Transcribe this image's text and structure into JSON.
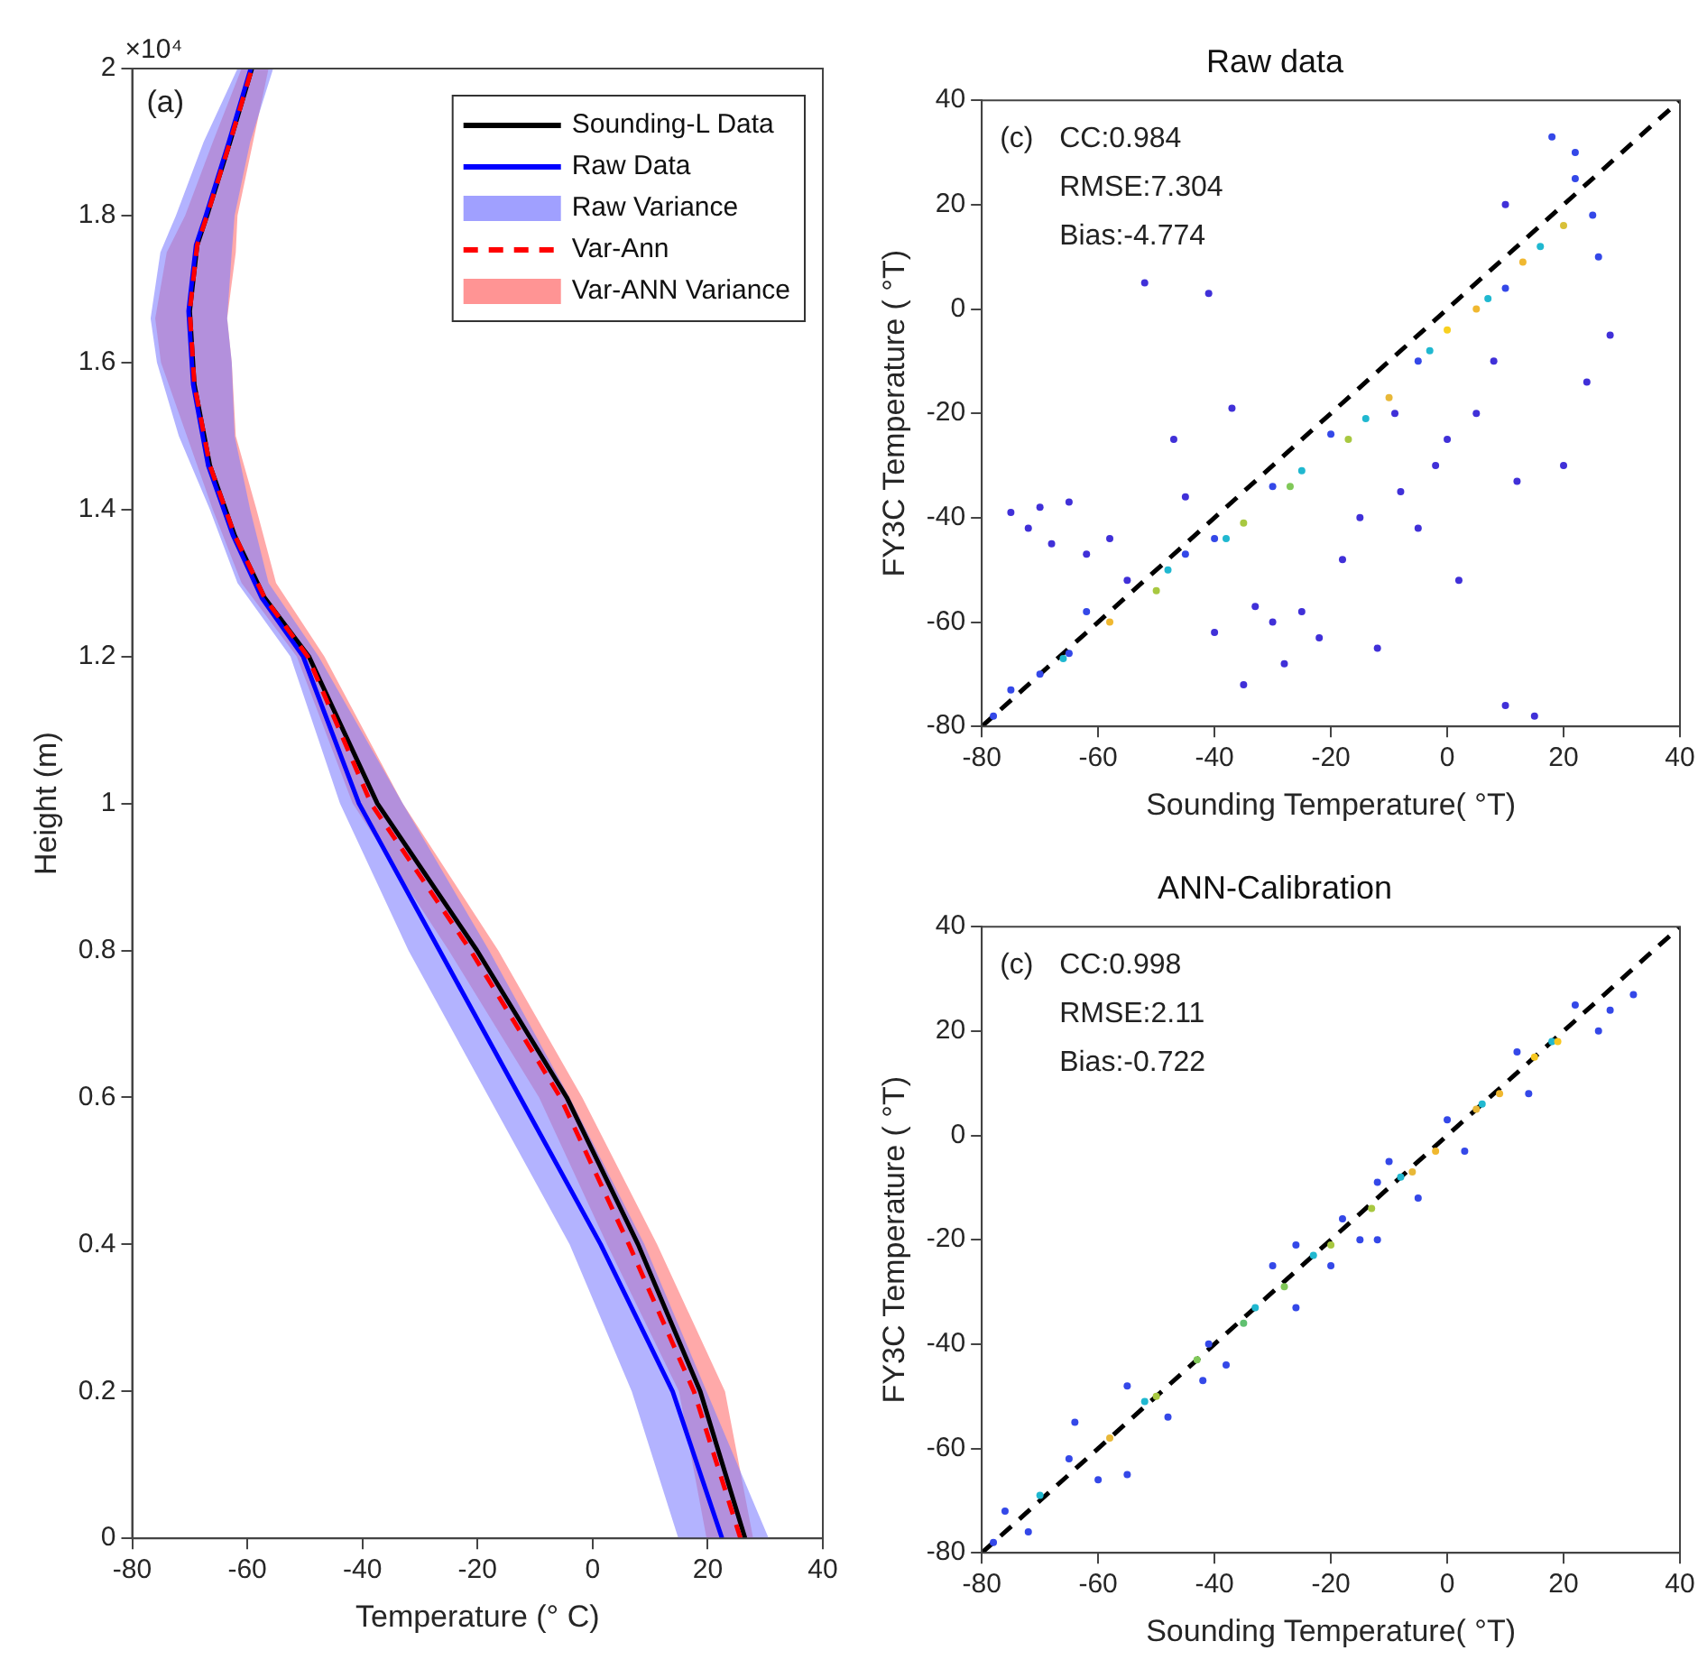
{
  "chart_data": [
    {
      "type": "line",
      "xlabel": "Temperature (° C)",
      "ylabel": "Height (m)",
      "annotations": [
        "(a)",
        "×10⁴"
      ],
      "xlim": [
        -80,
        40
      ],
      "xticks": [
        -80,
        -60,
        -40,
        -20,
        0,
        20,
        40
      ],
      "ylim": [
        0,
        2
      ],
      "yticks": [
        0,
        0.2,
        0.4,
        0.6,
        0.8,
        1,
        1.2,
        1.4,
        1.6,
        1.8,
        2
      ],
      "grid": false,
      "legend": "top right",
      "marker": "none",
      "series": [
        {
          "name": "Sounding-L Data",
          "color": "#000000",
          "line_style": "solid",
          "x": [
            26.5,
            18.7,
            7.9,
            -4.5,
            -20.1,
            -37.4,
            -49.3,
            -57,
            -62.2,
            -66.5,
            -69.2,
            -70,
            -68.7,
            -67,
            -63,
            -59.2
          ],
          "values": [
            0,
            0.2,
            0.4,
            0.6,
            0.8,
            1,
            1.2,
            1.28,
            1.365,
            1.46,
            1.57,
            1.67,
            1.76,
            1.8,
            1.9,
            2
          ]
        },
        {
          "name": "Raw Data",
          "color": "#0000ff",
          "line_style": "solid",
          "x": [
            22.5,
            13.9,
            1.4,
            -12.6,
            -26.6,
            -40.6,
            -50.3,
            -57.5,
            -62.5,
            -66.8,
            -69.4,
            -70.2,
            -68.9,
            -67.2,
            -63.2,
            -59.4
          ],
          "values": [
            0,
            0.2,
            0.4,
            0.6,
            0.8,
            1,
            1.2,
            1.28,
            1.365,
            1.46,
            1.57,
            1.67,
            1.76,
            1.8,
            1.9,
            2
          ]
        },
        {
          "name": "Raw Variance",
          "type": "area",
          "color": "#8080ff",
          "x": [
            14.9,
            6.8,
            -4,
            -18,
            -32,
            -43.9,
            -52.5,
            -61.7,
            -66.5,
            -71.9,
            -75.7,
            -76.8,
            -75.1,
            -72.4,
            -67.6,
            -61.7,
            -55.5,
            -59.5,
            -62.2,
            -62.7,
            -63.5,
            -62.7,
            -62.2,
            -59.5,
            -56.3,
            -47.6,
            -33,
            -18,
            -4,
            9,
            19.8,
            30.6
          ],
          "values": [
            0,
            0.2,
            0.4,
            0.6,
            0.8,
            1,
            1.2,
            1.3,
            1.4,
            1.5,
            1.6,
            1.66,
            1.75,
            1.8,
            1.9,
            2,
            2,
            1.9,
            1.8,
            1.75,
            1.66,
            1.6,
            1.5,
            1.4,
            1.3,
            1.2,
            1,
            0.8,
            0.6,
            0.4,
            0.2,
            0
          ]
        },
        {
          "name": "Var-Ann",
          "color": "#ff0000",
          "line_style": "dashed",
          "x": [
            25.7,
            17.6,
            6.3,
            -5.6,
            -21.2,
            -38.5,
            -49.5,
            -57,
            -62.2,
            -66.5,
            -69.2,
            -70,
            -68.7,
            -67,
            -63,
            -59.2
          ],
          "values": [
            0,
            0.2,
            0.4,
            0.6,
            0.8,
            1,
            1.2,
            1.28,
            1.365,
            1.46,
            1.57,
            1.67,
            1.76,
            1.8,
            1.9,
            2
          ]
        },
        {
          "name": "Var-ANN Variance",
          "type": "area",
          "color": "#ff7070",
          "x": [
            19.8,
            15,
            2.5,
            -9.3,
            -25,
            -41.7,
            -51.4,
            -61,
            -66,
            -70.5,
            -75,
            -76,
            -74,
            -70.8,
            -66,
            -61,
            -56.3,
            -59,
            -61.7,
            -62,
            -63.5,
            -62.7,
            -62,
            -58.4,
            -55,
            -46.6,
            -33,
            -16.4,
            -1.8,
            11.2,
            23,
            27.9
          ],
          "values": [
            0,
            0.2,
            0.4,
            0.6,
            0.8,
            1,
            1.2,
            1.3,
            1.4,
            1.5,
            1.6,
            1.66,
            1.75,
            1.8,
            1.9,
            2,
            2,
            1.9,
            1.8,
            1.75,
            1.66,
            1.6,
            1.5,
            1.4,
            1.3,
            1.2,
            1,
            0.8,
            0.6,
            0.4,
            0.2,
            0
          ]
        }
      ]
    },
    {
      "type": "scatter",
      "title": "Raw data",
      "xlabel": "Sounding Temperature( °T)",
      "ylabel": "FY3C Temperature ( °T)",
      "annotations": [
        "(c)",
        "CC:0.984",
        "RMSE:7.304",
        "Bias:-4.774"
      ],
      "xlim": [
        -80,
        40
      ],
      "xticks": [
        -80,
        -60,
        -40,
        -20,
        0,
        20,
        40
      ],
      "ylim": [
        -80,
        40
      ],
      "yticks": [
        -80,
        -60,
        -40,
        -20,
        0,
        20,
        40
      ],
      "grid": false,
      "legend": false,
      "series": [
        {
          "type": "scatter",
          "marker": "circle",
          "x": [
            -78,
            -75,
            -70,
            -65,
            -62,
            -45,
            -40,
            -30,
            -20,
            -5,
            10,
            22,
            25,
            22,
            18,
            26,
            -75,
            -72,
            -70,
            -68,
            -65,
            -62,
            -58,
            -55,
            -52,
            -47,
            -45,
            -41,
            -40,
            -37,
            -35,
            -33,
            -30,
            -28,
            -25,
            -22,
            -18,
            -15,
            -12,
            -8,
            -5,
            -2,
            2,
            5,
            8,
            10,
            12,
            15,
            20,
            24,
            28,
            10,
            -9,
            0,
            -66,
            -48,
            -38,
            -25,
            -14,
            -3,
            7,
            16,
            -58,
            -50,
            -35,
            -27,
            -17,
            -10,
            0,
            5,
            13,
            20
          ],
          "values": [
            -78,
            -73,
            -70,
            -66,
            -58,
            -47,
            -44,
            -34,
            -24,
            -10,
            4,
            25,
            18,
            30,
            33,
            10,
            -39,
            -42,
            -38,
            -45,
            -37,
            -47,
            -44,
            -52,
            5,
            -25,
            -36,
            3,
            -62,
            -19,
            -72,
            -57,
            -60,
            -68,
            -58,
            -63,
            -48,
            -40,
            -65,
            -35,
            -42,
            -30,
            -52,
            -20,
            -10,
            -76,
            -33,
            -78,
            -30,
            -14,
            -5,
            20,
            -20,
            -25,
            -67,
            -50,
            -44,
            -31,
            -21,
            -8,
            2,
            12,
            -60,
            -54,
            -41,
            -34,
            -25,
            -17,
            -4,
            0,
            9,
            16
          ],
          "colors": [
            "#3448e8",
            "#3448e8",
            "#3448e8",
            "#3448e8",
            "#3448e8",
            "#3448e8",
            "#3448e8",
            "#3448e8",
            "#3448e8",
            "#3448e8",
            "#3448e8",
            "#3448e8",
            "#3448e8",
            "#3448e8",
            "#3448e8",
            "#3448e8",
            "#4030d8",
            "#4030d8",
            "#4030d8",
            "#4030d8",
            "#4030d8",
            "#4030d8",
            "#4030d8",
            "#4030d8",
            "#4030d8",
            "#4030d8",
            "#4030d8",
            "#4030d8",
            "#4030d8",
            "#4030d8",
            "#4030d8",
            "#4030d8",
            "#4030d8",
            "#4030d8",
            "#4030d8",
            "#4030d8",
            "#4030d8",
            "#4030d8",
            "#4030d8",
            "#4030d8",
            "#4030d8",
            "#4030d8",
            "#4030d8",
            "#4030d8",
            "#4030d8",
            "#4030d8",
            "#4030d8",
            "#4030d8",
            "#4030d8",
            "#4030d8",
            "#4030d8",
            "#4030d8",
            "#4030d8",
            "#4030d8",
            "#20b8d0",
            "#20b8d0",
            "#20b8d0",
            "#20b8d0",
            "#20b8d0",
            "#20b8d0",
            "#20b8d0",
            "#20b8d0",
            "#f0b830",
            "#a8c840",
            "#a8c840",
            "#80c858",
            "#a8c840",
            "#e8b838",
            "#f8d020",
            "#f0b830",
            "#f0b830",
            "#d8c038"
          ]
        },
        {
          "type": "line",
          "color": "#000000",
          "line_style": "dashed",
          "marker": "none",
          "x": [
            -80,
            40
          ],
          "values": [
            -80,
            40
          ]
        }
      ]
    },
    {
      "type": "scatter",
      "title": "ANN-Calibration",
      "xlabel": "Sounding Temperature( °T)",
      "ylabel": "FY3C Temperature ( °T)",
      "annotations": [
        "(c)",
        "CC:0.998",
        "RMSE:2.11",
        "Bias:-0.722"
      ],
      "xlim": [
        -80,
        40
      ],
      "xticks": [
        -80,
        -60,
        -40,
        -20,
        0,
        20,
        40
      ],
      "ylim": [
        -80,
        40
      ],
      "yticks": [
        -80,
        -60,
        -40,
        -20,
        0,
        20,
        40
      ],
      "grid": false,
      "legend": false,
      "series": [
        {
          "type": "scatter",
          "marker": "circle",
          "x": [
            -78,
            -76,
            -72,
            -65,
            -60,
            -55,
            -48,
            -41,
            -38,
            -30,
            -26,
            -18,
            -15,
            -10,
            -5,
            0,
            3,
            12,
            14,
            22,
            26,
            28,
            32,
            -64,
            -55,
            -42,
            -20,
            -12,
            -12,
            -26,
            -70,
            -52,
            -33,
            -23,
            -8,
            6,
            18,
            -58,
            -50,
            -43,
            -35,
            -28,
            -20,
            -13,
            -6,
            -2,
            5,
            9,
            15,
            19
          ],
          "values": [
            -78,
            -72,
            -76,
            -62,
            -66,
            -48,
            -54,
            -40,
            -44,
            -25,
            -33,
            -16,
            -20,
            -5,
            -12,
            3,
            -3,
            16,
            8,
            25,
            20,
            24,
            27,
            -55,
            -65,
            -47,
            -25,
            -20,
            -9,
            -21,
            -69,
            -51,
            -33,
            -23,
            -8,
            6,
            18,
            -58,
            -50,
            -43,
            -36,
            -29,
            -21,
            -14,
            -7,
            -3,
            5,
            8,
            15,
            18
          ],
          "colors": [
            "#3448e8",
            "#3448e8",
            "#3448e8",
            "#3448e8",
            "#3448e8",
            "#3448e8",
            "#3448e8",
            "#3448e8",
            "#3448e8",
            "#3448e8",
            "#3448e8",
            "#3448e8",
            "#3448e8",
            "#3448e8",
            "#3448e8",
            "#3448e8",
            "#3448e8",
            "#3448e8",
            "#3448e8",
            "#3448e8",
            "#3448e8",
            "#3448e8",
            "#3448e8",
            "#3448e8",
            "#3448e8",
            "#3448e8",
            "#3448e8",
            "#3448e8",
            "#3448e8",
            "#3448e8",
            "#20b8d0",
            "#20b8d0",
            "#20b8d0",
            "#20b8d0",
            "#20b8d0",
            "#20b8d0",
            "#20b8d0",
            "#e8b838",
            "#a8c840",
            "#80c858",
            "#60c070",
            "#80c858",
            "#a8c840",
            "#a8c840",
            "#e8b838",
            "#f0b830",
            "#e8b838",
            "#f0b830",
            "#f8c820",
            "#f8c820"
          ]
        },
        {
          "type": "line",
          "color": "#000000",
          "line_style": "dashed",
          "marker": "none",
          "x": [
            -80,
            40
          ],
          "values": [
            -80,
            40
          ]
        }
      ]
    }
  ]
}
